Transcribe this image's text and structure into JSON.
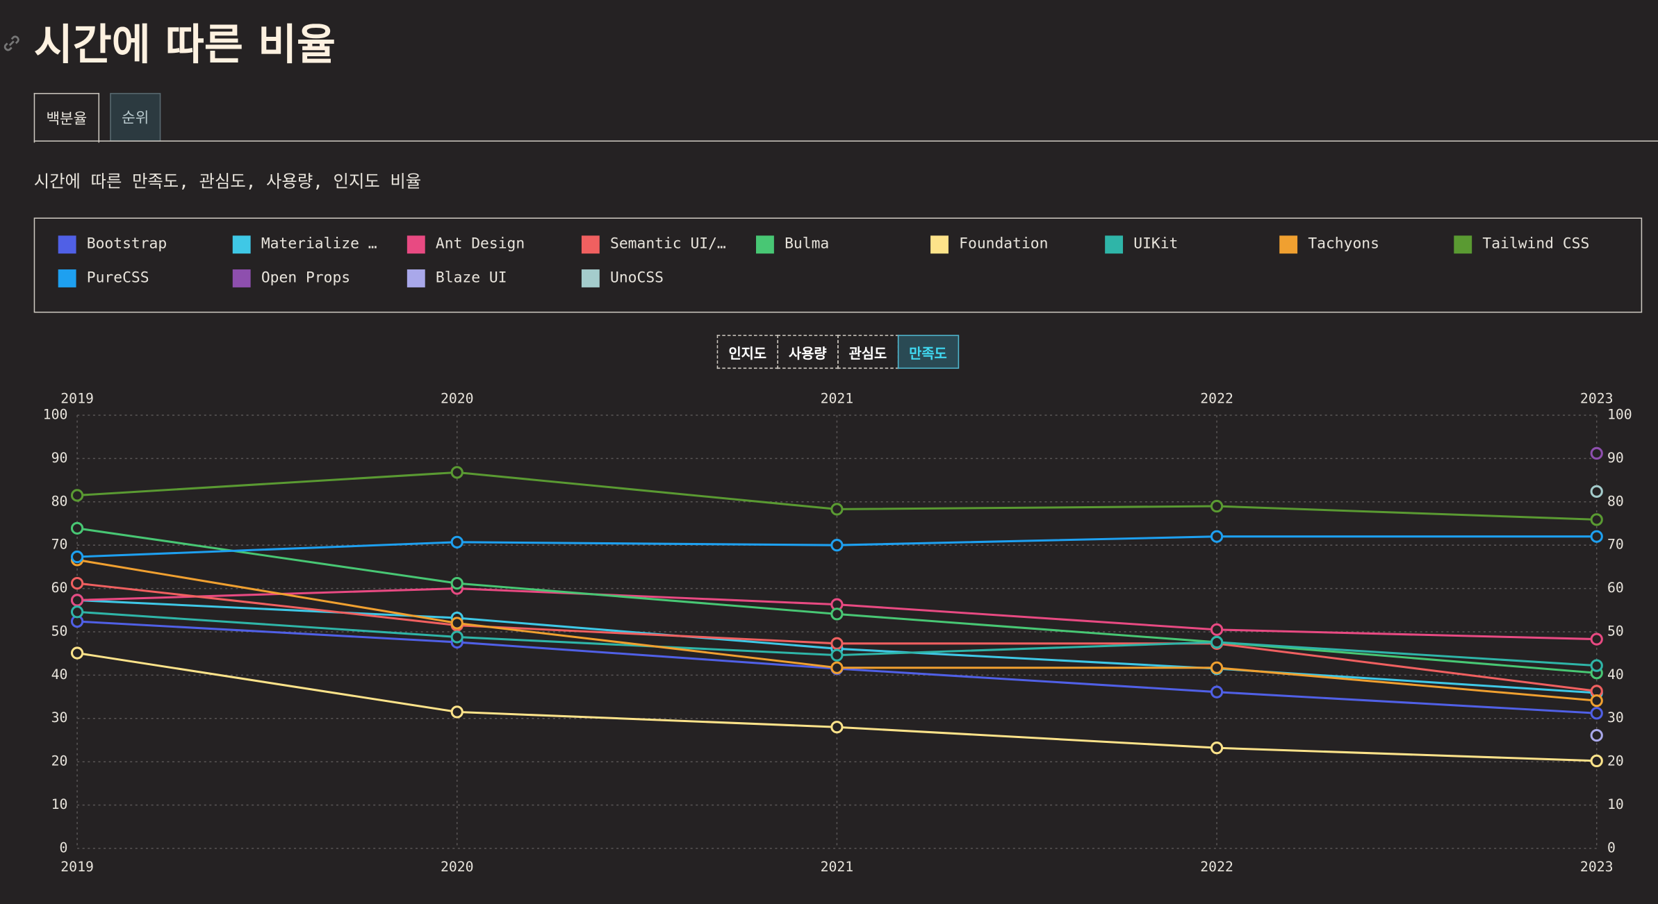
{
  "title": "시간에 따른 비율",
  "tabs": [
    "백분율",
    "순위"
  ],
  "description": "시간에 따른 만족도, 관심도, 사용량, 인지도 비율",
  "metric_buttons": [
    "인지도",
    "사용량",
    "관심도",
    "만족도"
  ],
  "active_metric": 3,
  "chart_data": {
    "type": "line",
    "categories": [
      "2019",
      "2020",
      "2021",
      "2022",
      "2023"
    ],
    "ylim": [
      0,
      100
    ],
    "yticks": [
      0,
      10,
      20,
      30,
      40,
      50,
      60,
      70,
      80,
      90,
      100
    ],
    "grid": true,
    "series": [
      {
        "name": "Bootstrap",
        "color": "#5060e6",
        "values": [
          52.4,
          47.6,
          41.5,
          36.1,
          31.2
        ]
      },
      {
        "name": "Materialize …",
        "color": "#3fc8e6",
        "values": [
          57.3,
          53.2,
          46.1,
          41.5,
          35.9
        ]
      },
      {
        "name": "Ant Design",
        "color": "#e84a82",
        "values": [
          57.3,
          60.0,
          56.3,
          50.5,
          48.3
        ]
      },
      {
        "name": "Semantic UI/…",
        "color": "#f06060",
        "values": [
          61.2,
          51.5,
          47.3,
          47.3,
          36.3
        ]
      },
      {
        "name": "Bulma",
        "color": "#48c774",
        "values": [
          73.9,
          61.2,
          54.1,
          47.6,
          40.5
        ]
      },
      {
        "name": "Foundation",
        "color": "#fde38a",
        "values": [
          45.1,
          31.5,
          28.0,
          23.2,
          20.2
        ]
      },
      {
        "name": "UIKit",
        "color": "#2fb5a8",
        "values": [
          54.6,
          48.8,
          44.6,
          47.6,
          42.2
        ]
      },
      {
        "name": "Tachyons",
        "color": "#f0a030",
        "values": [
          66.6,
          52.0,
          41.7,
          41.7,
          34.1
        ]
      },
      {
        "name": "Tailwind CSS",
        "color": "#5a9a32",
        "values": [
          81.5,
          86.8,
          78.3,
          79.0,
          75.9
        ]
      },
      {
        "name": "PureCSS",
        "color": "#1ea0f0",
        "values": [
          67.3,
          70.7,
          70.0,
          72.0,
          72.0
        ]
      },
      {
        "name": "Open Props",
        "color": "#8e4fae",
        "values": [
          null,
          null,
          null,
          null,
          91.2
        ]
      },
      {
        "name": "Blaze UI",
        "color": "#a9a8ea",
        "values": [
          null,
          null,
          null,
          null,
          26.1
        ]
      },
      {
        "name": "UnoCSS",
        "color": "#a4cccc",
        "values": [
          null,
          null,
          null,
          null,
          82.4
        ]
      }
    ]
  }
}
